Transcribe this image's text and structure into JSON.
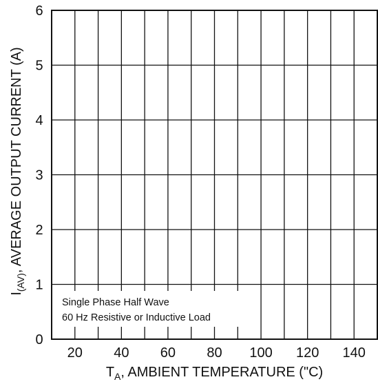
{
  "chart_data": {
    "type": "line",
    "title": "",
    "xlabel": {
      "prefix": "T",
      "sub": "A",
      "rest": ", AMBIENT TEMPERATURE (\"C)"
    },
    "ylabel": {
      "prefix": "I",
      "sub": "(AV)",
      "rest": ", AVERAGE OUTPUT CURRENT (A)"
    },
    "xlim": [
      10,
      150
    ],
    "ylim": [
      0,
      6
    ],
    "x_ticks": [
      20,
      40,
      60,
      80,
      100,
      120,
      140
    ],
    "x_gridlines": [
      20,
      30,
      40,
      50,
      60,
      70,
      80,
      90,
      100,
      110,
      120,
      130,
      140
    ],
    "y_ticks": [
      0,
      1,
      2,
      3,
      4,
      5,
      6
    ],
    "grid": true,
    "series": [],
    "annotations": [
      "Single Phase Half Wave",
      "60 Hz Resistive or Inductive Load"
    ]
  }
}
